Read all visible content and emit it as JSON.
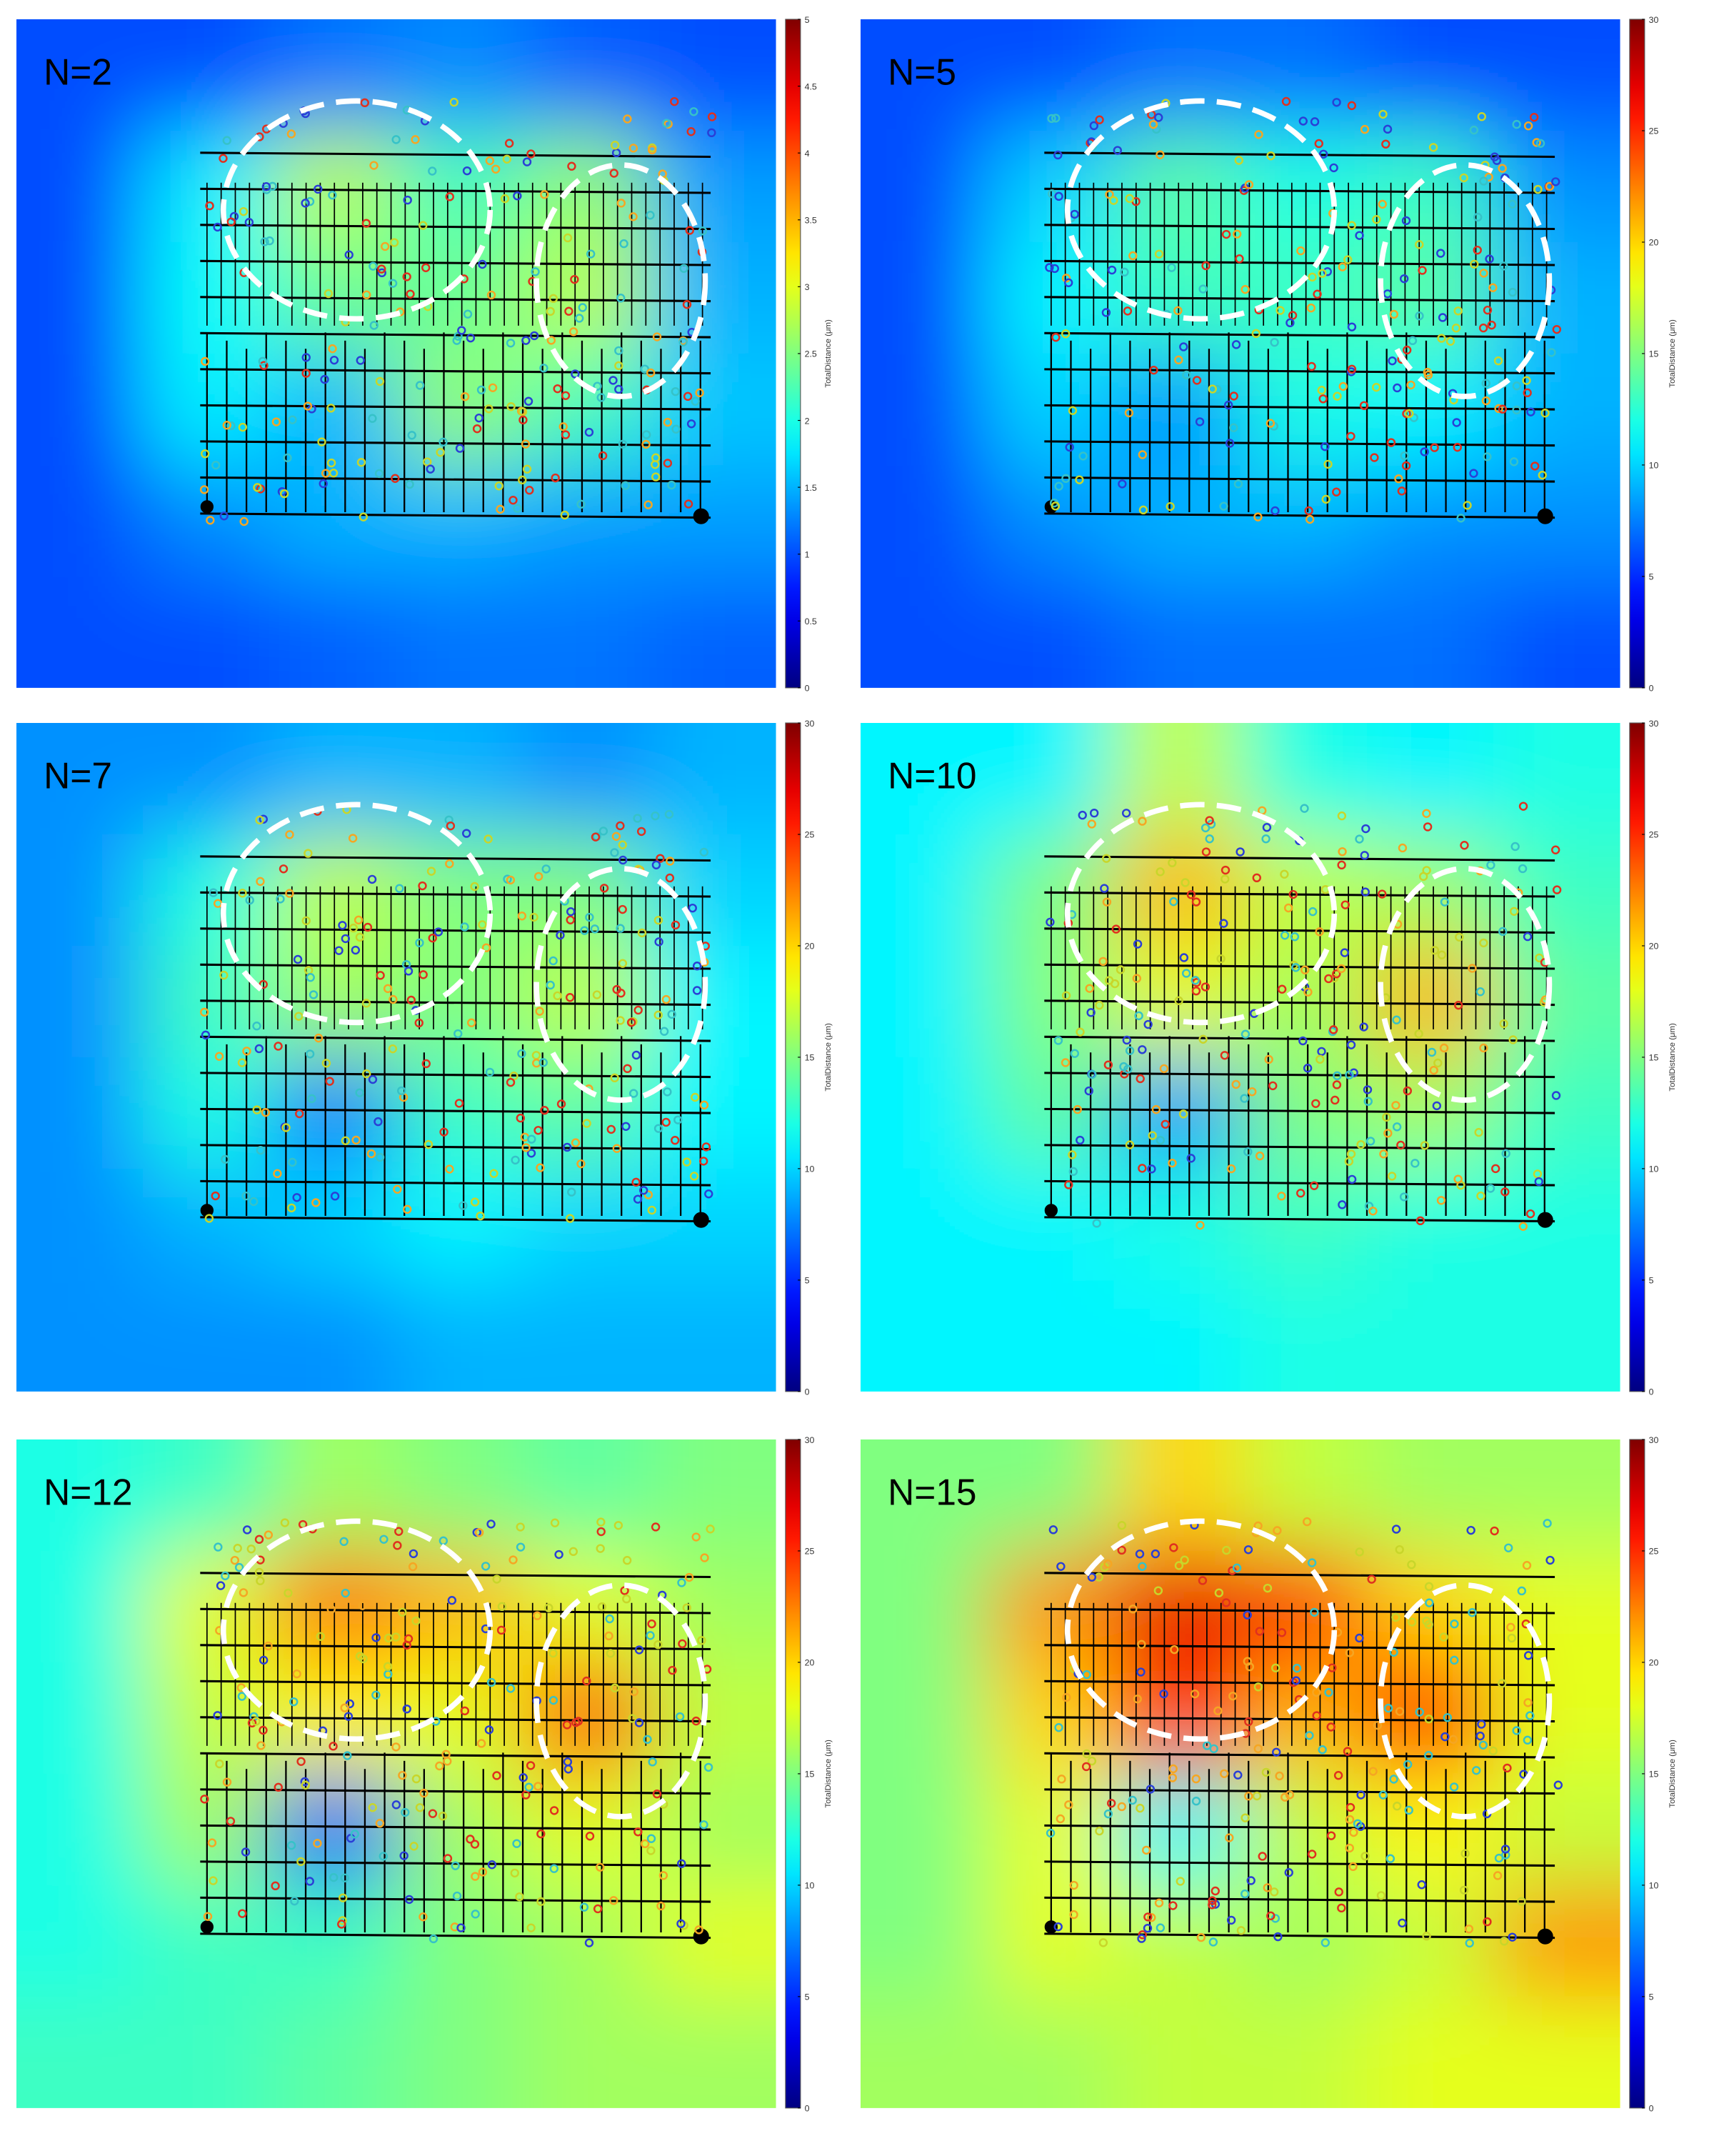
{
  "chart_data": [
    {
      "type": "heatmap",
      "title": "N=2",
      "colormap": "jet",
      "colorbar_label": "TotalDistance (μm)",
      "zlim": [
        0,
        5
      ],
      "zticks": [
        0,
        0.5,
        1,
        1.5,
        2,
        2.5,
        3,
        3.5,
        4,
        4.5,
        5
      ],
      "z": [
        [
          1.0,
          1.0,
          1.2,
          1.3,
          1.1,
          1.0
        ],
        [
          1.0,
          1.8,
          2.8,
          2.2,
          2.6,
          1.4
        ],
        [
          1.0,
          1.9,
          2.4,
          2.4,
          2.8,
          1.5
        ],
        [
          1.0,
          1.8,
          1.5,
          2.6,
          2.2,
          1.6
        ],
        [
          1.0,
          1.3,
          1.5,
          1.5,
          1.4,
          1.4
        ],
        [
          1.0,
          1.0,
          1.1,
          1.2,
          1.2,
          1.1
        ]
      ]
    },
    {
      "type": "heatmap",
      "title": "N=5",
      "colormap": "jet",
      "colorbar_label": "TotalDistance (μm)",
      "zlim": [
        0,
        30
      ],
      "zticks": [
        0,
        5,
        10,
        15,
        20,
        25,
        30
      ],
      "z": [
        [
          6,
          6,
          7,
          7,
          6,
          6
        ],
        [
          6,
          10,
          14,
          12,
          13,
          8
        ],
        [
          6,
          11,
          13,
          13,
          14,
          9
        ],
        [
          6,
          10,
          8,
          12,
          11,
          9
        ],
        [
          6,
          8,
          9,
          9,
          8,
          8
        ],
        [
          6,
          6,
          7,
          7,
          7,
          6
        ]
      ]
    },
    {
      "type": "heatmap",
      "title": "N=7",
      "colormap": "jet",
      "colorbar_label": "TotalDistance (μm)",
      "zlim": [
        0,
        30
      ],
      "zticks": [
        0,
        5,
        10,
        15,
        20,
        25,
        30
      ],
      "z": [
        [
          8,
          8,
          9,
          9,
          8,
          9
        ],
        [
          8,
          12,
          17,
          15,
          15,
          10
        ],
        [
          8,
          13,
          16,
          15,
          17,
          11
        ],
        [
          8,
          12,
          7,
          13,
          14,
          11
        ],
        [
          8,
          9,
          10,
          11,
          10,
          10
        ],
        [
          8,
          8,
          8,
          9,
          9,
          9
        ]
      ]
    },
    {
      "type": "heatmap",
      "title": "N=10",
      "colormap": "jet",
      "colorbar_label": "TotalDistance (μm)",
      "zlim": [
        0,
        30
      ],
      "zticks": [
        0,
        5,
        10,
        15,
        20,
        25,
        30
      ],
      "z": [
        [
          11,
          11,
          17,
          12,
          11,
          12
        ],
        [
          11,
          15,
          21,
          17,
          16,
          13
        ],
        [
          11,
          15,
          18,
          16,
          21,
          14
        ],
        [
          11,
          14,
          8,
          15,
          16,
          13
        ],
        [
          11,
          11,
          12,
          13,
          12,
          12
        ],
        [
          11,
          11,
          11,
          12,
          12,
          12
        ]
      ]
    },
    {
      "type": "heatmap",
      "title": "N=12",
      "colormap": "jet",
      "colorbar_label": "TotalDistance (μm)",
      "zlim": [
        0,
        30
      ],
      "zticks": [
        0,
        5,
        10,
        15,
        20,
        25,
        30
      ],
      "z": [
        [
          12,
          13,
          16,
          15,
          14,
          15
        ],
        [
          12,
          18,
          23,
          21,
          18,
          16
        ],
        [
          12,
          17,
          19,
          18,
          24,
          17
        ],
        [
          12,
          16,
          6,
          16,
          18,
          16
        ],
        [
          12,
          13,
          13,
          15,
          16,
          18
        ],
        [
          13,
          13,
          14,
          15,
          16,
          16
        ]
      ]
    },
    {
      "type": "heatmap",
      "title": "N=15",
      "colormap": "jet",
      "colorbar_label": "TotalDistance (μm)",
      "zlim": [
        0,
        30
      ],
      "zticks": [
        0,
        5,
        10,
        15,
        20,
        25,
        30
      ],
      "z": [
        [
          15,
          15,
          20,
          17,
          16,
          16
        ],
        [
          15,
          22,
          27,
          25,
          20,
          18
        ],
        [
          15,
          20,
          26,
          21,
          26,
          18
        ],
        [
          15,
          18,
          11,
          17,
          19,
          17
        ],
        [
          15,
          18,
          17,
          16,
          17,
          22
        ],
        [
          16,
          16,
          17,
          17,
          18,
          18
        ]
      ]
    }
  ]
}
